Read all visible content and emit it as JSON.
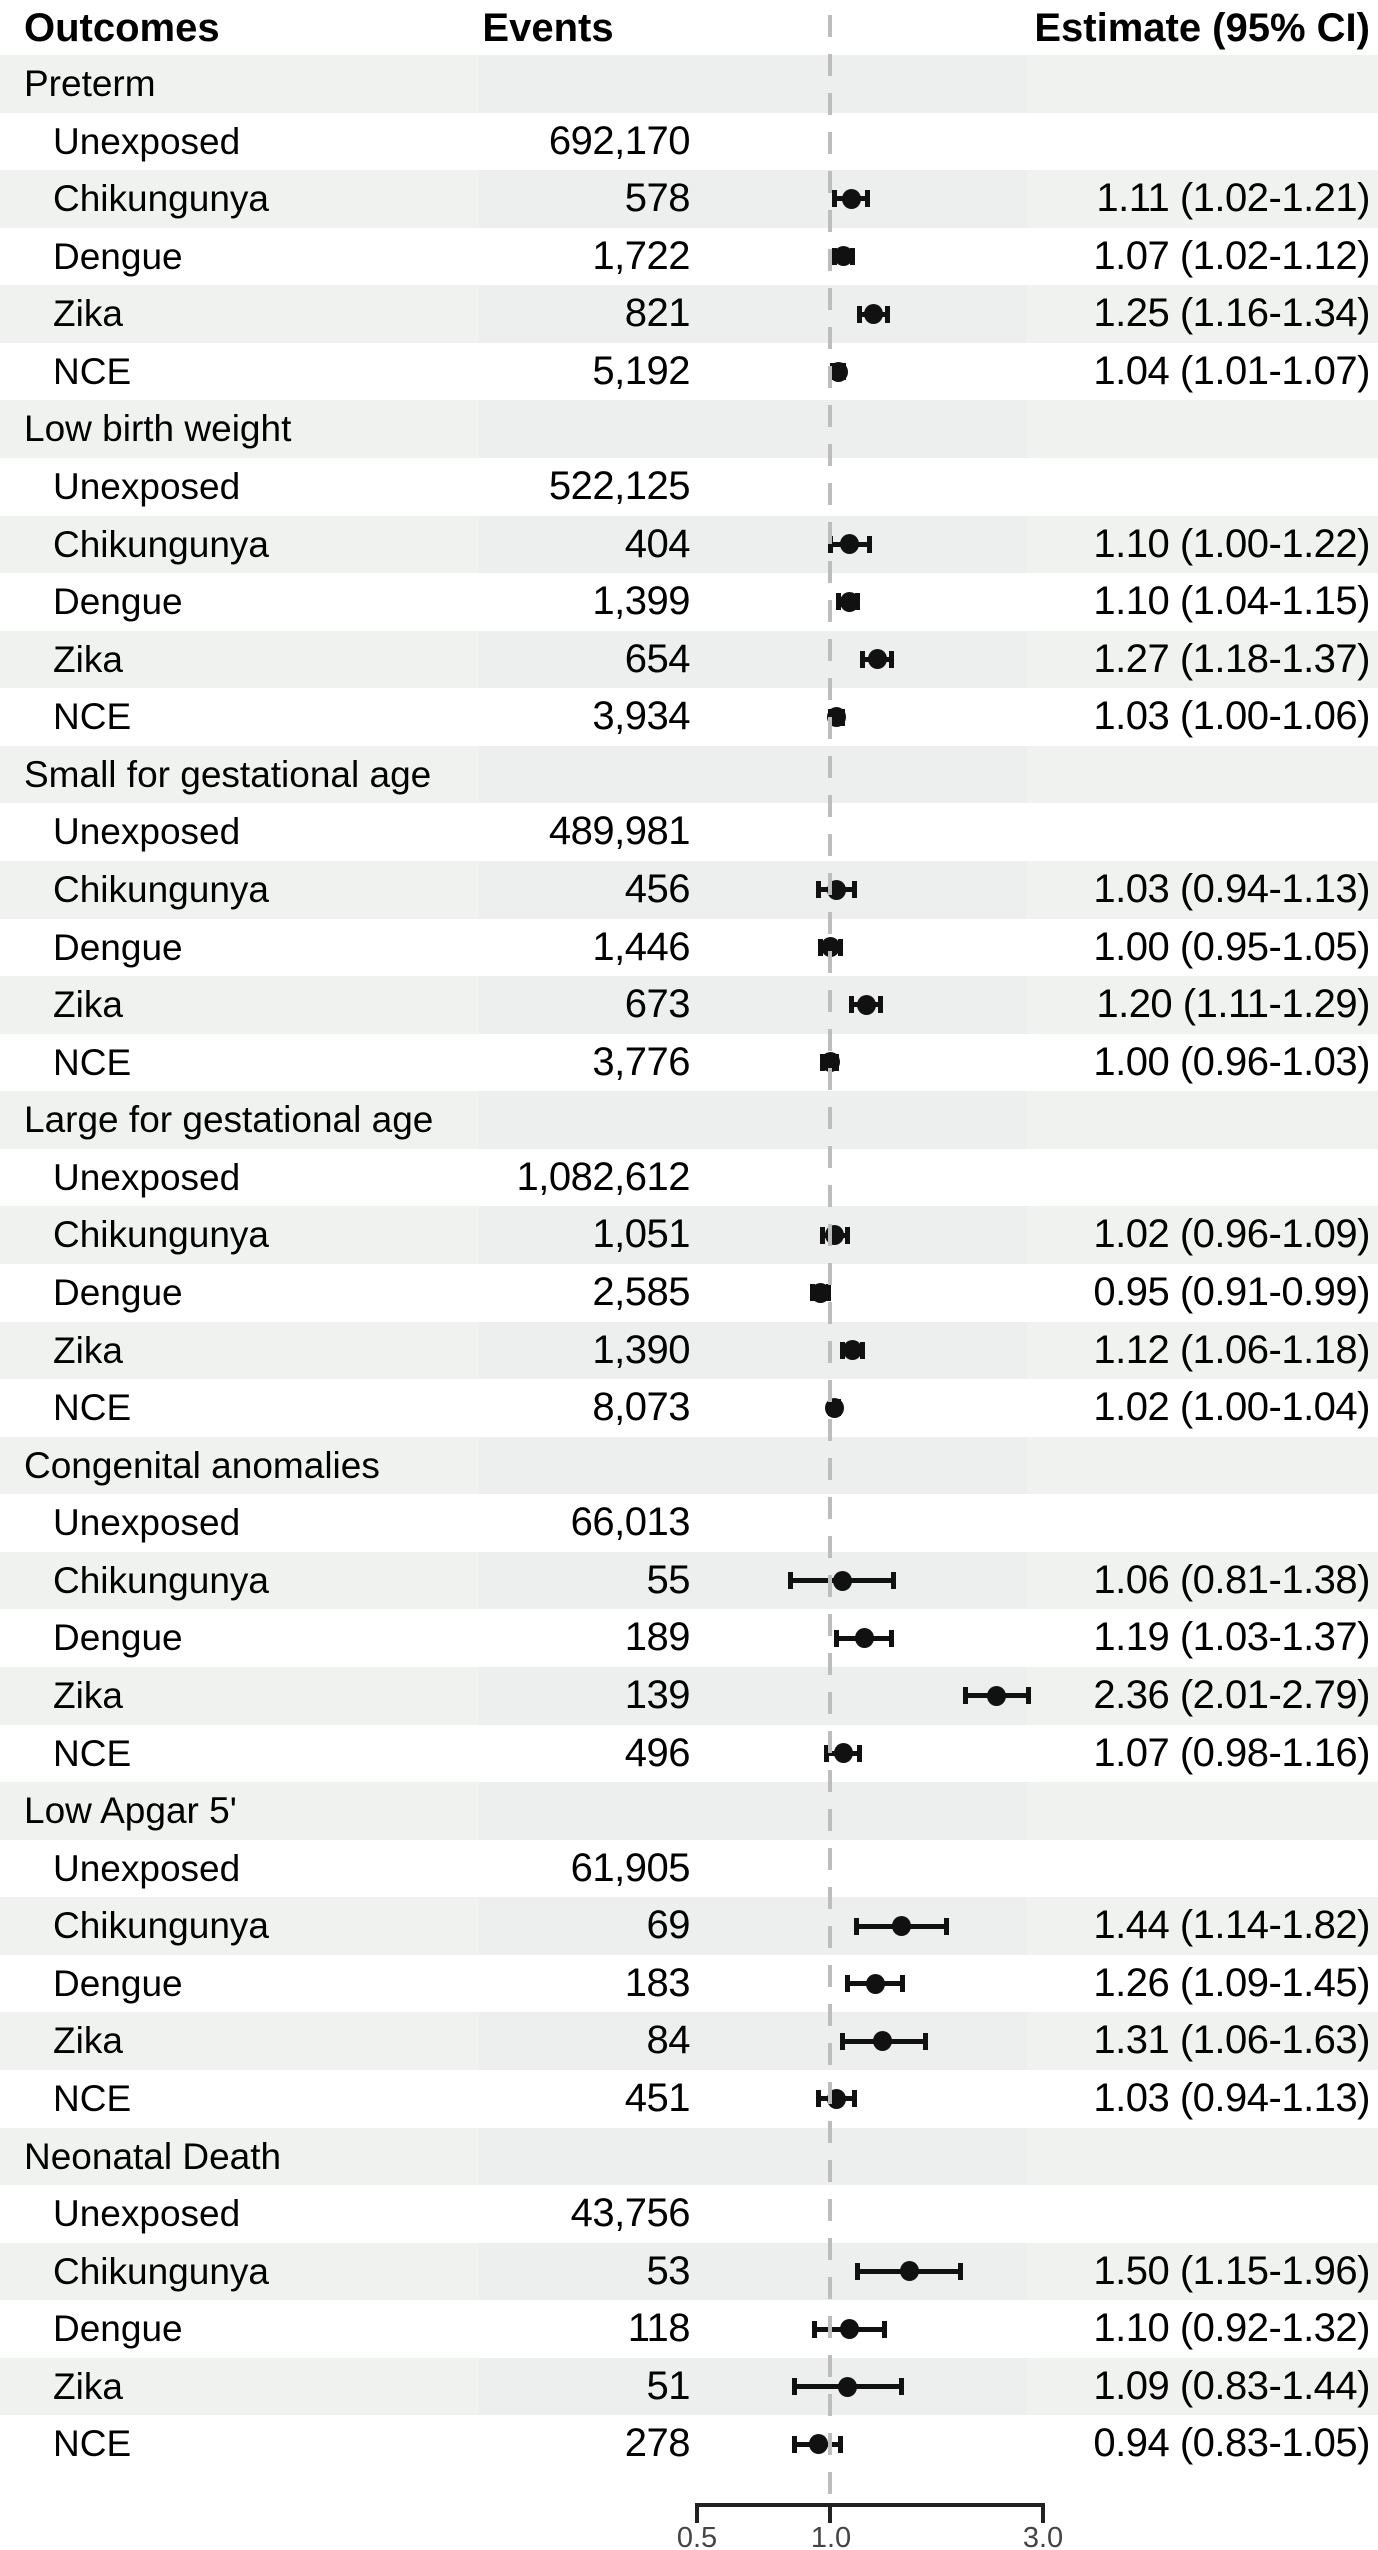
{
  "header": {
    "outcomes": "Outcomes",
    "events": "Events",
    "estimate": "Estimate (95% CI)"
  },
  "colors": {
    "stripe_outer": "#f0f2f0",
    "stripe_middle": "#ecefed",
    "marker": "#111111",
    "reference_line": "#bdbdbd",
    "axis_line": "#222222",
    "axis_label": "#444444",
    "text": "#000000",
    "background": "#ffffff"
  },
  "chart_data": {
    "type": "forest",
    "x_scale": "log",
    "xlim": [
      0.5,
      3.0
    ],
    "x_ticks": [
      0.5,
      1.0,
      3.0
    ],
    "x_tick_labels": [
      "0.5",
      "1.0",
      "3.0"
    ],
    "reference_value": 1.0,
    "grid": false,
    "sections": [
      {
        "outcome": "Preterm",
        "rows": [
          {
            "label": "Unexposed",
            "events": "692,170"
          },
          {
            "label": "Chikungunya",
            "events": "578",
            "estimate": 1.11,
            "lo": 1.02,
            "hi": 1.21,
            "estimate_label": "1.11 (1.02-1.21)"
          },
          {
            "label": "Dengue",
            "events": "1,722",
            "estimate": 1.07,
            "lo": 1.02,
            "hi": 1.12,
            "estimate_label": "1.07 (1.02-1.12)"
          },
          {
            "label": "Zika",
            "events": "821",
            "estimate": 1.25,
            "lo": 1.16,
            "hi": 1.34,
            "estimate_label": "1.25 (1.16-1.34)"
          },
          {
            "label": "NCE",
            "events": "5,192",
            "estimate": 1.04,
            "lo": 1.01,
            "hi": 1.07,
            "estimate_label": "1.04 (1.01-1.07)"
          }
        ]
      },
      {
        "outcome": "Low birth weight",
        "rows": [
          {
            "label": "Unexposed",
            "events": "522,125"
          },
          {
            "label": "Chikungunya",
            "events": "404",
            "estimate": 1.1,
            "lo": 1.0,
            "hi": 1.22,
            "estimate_label": "1.10 (1.00-1.22)"
          },
          {
            "label": "Dengue",
            "events": "1,399",
            "estimate": 1.1,
            "lo": 1.04,
            "hi": 1.15,
            "estimate_label": "1.10 (1.04-1.15)"
          },
          {
            "label": "Zika",
            "events": "654",
            "estimate": 1.27,
            "lo": 1.18,
            "hi": 1.37,
            "estimate_label": "1.27 (1.18-1.37)"
          },
          {
            "label": "NCE",
            "events": "3,934",
            "estimate": 1.03,
            "lo": 1.0,
            "hi": 1.06,
            "estimate_label": "1.03 (1.00-1.06)"
          }
        ]
      },
      {
        "outcome": "Small for gestational age",
        "rows": [
          {
            "label": "Unexposed",
            "events": "489,981"
          },
          {
            "label": "Chikungunya",
            "events": "456",
            "estimate": 1.03,
            "lo": 0.94,
            "hi": 1.13,
            "estimate_label": "1.03 (0.94-1.13)"
          },
          {
            "label": "Dengue",
            "events": "1,446",
            "estimate": 1.0,
            "lo": 0.95,
            "hi": 1.05,
            "estimate_label": "1.00 (0.95-1.05)"
          },
          {
            "label": "Zika",
            "events": "673",
            "estimate": 1.2,
            "lo": 1.11,
            "hi": 1.29,
            "estimate_label": "1.20 (1.11-1.29)"
          },
          {
            "label": "NCE",
            "events": "3,776",
            "estimate": 1.0,
            "lo": 0.96,
            "hi": 1.03,
            "estimate_label": "1.00 (0.96-1.03)"
          }
        ]
      },
      {
        "outcome": "Large for gestational age",
        "rows": [
          {
            "label": "Unexposed",
            "events": "1,082,612"
          },
          {
            "label": "Chikungunya",
            "events": "1,051",
            "estimate": 1.02,
            "lo": 0.96,
            "hi": 1.09,
            "estimate_label": "1.02 (0.96-1.09)"
          },
          {
            "label": "Dengue",
            "events": "2,585",
            "estimate": 0.95,
            "lo": 0.91,
            "hi": 0.99,
            "estimate_label": "0.95 (0.91-0.99)"
          },
          {
            "label": "Zika",
            "events": "1,390",
            "estimate": 1.12,
            "lo": 1.06,
            "hi": 1.18,
            "estimate_label": "1.12 (1.06-1.18)"
          },
          {
            "label": "NCE",
            "events": "8,073",
            "estimate": 1.02,
            "lo": 1.0,
            "hi": 1.04,
            "estimate_label": "1.02 (1.00-1.04)"
          }
        ]
      },
      {
        "outcome": "Congenital anomalies",
        "rows": [
          {
            "label": "Unexposed",
            "events": "66,013"
          },
          {
            "label": "Chikungunya",
            "events": "55",
            "estimate": 1.06,
            "lo": 0.81,
            "hi": 1.38,
            "estimate_label": "1.06 (0.81-1.38)"
          },
          {
            "label": "Dengue",
            "events": "189",
            "estimate": 1.19,
            "lo": 1.03,
            "hi": 1.37,
            "estimate_label": "1.19 (1.03-1.37)"
          },
          {
            "label": "Zika",
            "events": "139",
            "estimate": 2.36,
            "lo": 2.01,
            "hi": 2.79,
            "estimate_label": "2.36 (2.01-2.79)"
          },
          {
            "label": "NCE",
            "events": "496",
            "estimate": 1.07,
            "lo": 0.98,
            "hi": 1.16,
            "estimate_label": "1.07 (0.98-1.16)"
          }
        ]
      },
      {
        "outcome": "Low Apgar 5'",
        "rows": [
          {
            "label": "Unexposed",
            "events": "61,905"
          },
          {
            "label": "Chikungunya",
            "events": "69",
            "estimate": 1.44,
            "lo": 1.14,
            "hi": 1.82,
            "estimate_label": "1.44 (1.14-1.82)"
          },
          {
            "label": "Dengue",
            "events": "183",
            "estimate": 1.26,
            "lo": 1.09,
            "hi": 1.45,
            "estimate_label": "1.26 (1.09-1.45)"
          },
          {
            "label": "Zika",
            "events": "84",
            "estimate": 1.31,
            "lo": 1.06,
            "hi": 1.63,
            "estimate_label": "1.31 (1.06-1.63)"
          },
          {
            "label": "NCE",
            "events": "451",
            "estimate": 1.03,
            "lo": 0.94,
            "hi": 1.13,
            "estimate_label": "1.03 (0.94-1.13)"
          }
        ]
      },
      {
        "outcome": "Neonatal Death",
        "rows": [
          {
            "label": "Unexposed",
            "events": "43,756"
          },
          {
            "label": "Chikungunya",
            "events": "53",
            "estimate": 1.5,
            "lo": 1.15,
            "hi": 1.96,
            "estimate_label": "1.50 (1.15-1.96)"
          },
          {
            "label": "Dengue",
            "events": "118",
            "estimate": 1.1,
            "lo": 0.92,
            "hi": 1.32,
            "estimate_label": "1.10 (0.92-1.32)"
          },
          {
            "label": "Zika",
            "events": "51",
            "estimate": 1.09,
            "lo": 0.83,
            "hi": 1.44,
            "estimate_label": "1.09 (0.83-1.44)"
          },
          {
            "label": "NCE",
            "events": "278",
            "estimate": 0.94,
            "lo": 0.83,
            "hi": 1.05,
            "estimate_label": "0.94 (0.83-1.05)"
          }
        ]
      }
    ]
  }
}
